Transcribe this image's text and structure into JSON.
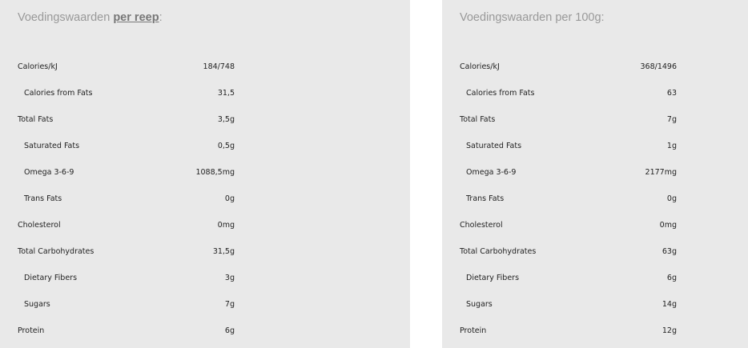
{
  "per_serving": {
    "title_prefix": "Voedingswaarden ",
    "title_emphasis": "per reep",
    "title_suffix": ":",
    "rows": [
      {
        "label": "Calories/kJ",
        "value": "184/748",
        "sub": false
      },
      {
        "label": "Calories from Fats",
        "value": "31,5",
        "sub": true
      },
      {
        "label": "Total Fats",
        "value": "3,5g",
        "sub": false
      },
      {
        "label": "Saturated Fats",
        "value": "0,5g",
        "sub": true
      },
      {
        "label": "Omega 3-6-9",
        "value": "1088,5mg",
        "sub": true
      },
      {
        "label": "Trans Fats",
        "value": "0g",
        "sub": true
      },
      {
        "label": "Cholesterol",
        "value": "0mg",
        "sub": false
      },
      {
        "label": "Total Carbohydrates",
        "value": "31,5g",
        "sub": false
      },
      {
        "label": "Dietary Fibers",
        "value": "3g",
        "sub": true
      },
      {
        "label": "Sugars",
        "value": "7g",
        "sub": true
      },
      {
        "label": "Protein",
        "value": "6g",
        "sub": false
      }
    ]
  },
  "per_100g": {
    "title": "Voedingswaarden per 100g:",
    "rows": [
      {
        "label": "Calories/kJ",
        "value": "368/1496",
        "sub": false
      },
      {
        "label": "Calories from Fats",
        "value": "63",
        "sub": true
      },
      {
        "label": "Total Fats",
        "value": "7g",
        "sub": false
      },
      {
        "label": "Saturated Fats",
        "value": "1g",
        "sub": true
      },
      {
        "label": "Omega 3-6-9",
        "value": "2177mg",
        "sub": true
      },
      {
        "label": "Trans Fats",
        "value": "0g",
        "sub": true
      },
      {
        "label": "Cholesterol",
        "value": "0mg",
        "sub": false
      },
      {
        "label": "Total Carbohydrates",
        "value": "63g",
        "sub": false
      },
      {
        "label": "Dietary Fibers",
        "value": "6g",
        "sub": true
      },
      {
        "label": "Sugars",
        "value": "14g",
        "sub": true
      },
      {
        "label": "Protein",
        "value": "12g",
        "sub": false
      }
    ]
  }
}
